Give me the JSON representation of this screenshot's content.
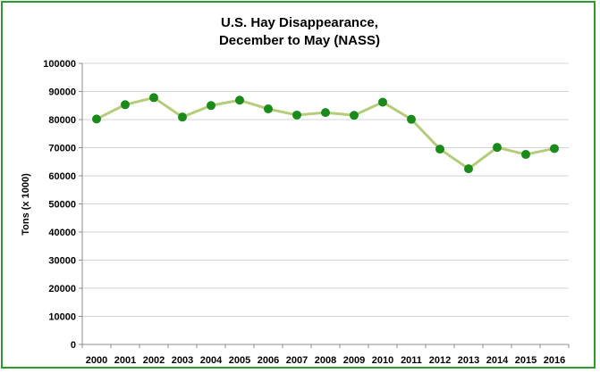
{
  "chart_data": {
    "type": "line",
    "title_lines": [
      "U.S. Hay Disappearance,",
      "December to May  (NASS)"
    ],
    "xlabel": "",
    "ylabel": "Tons (x 1000)",
    "ylim": [
      0,
      100000
    ],
    "yticks": [
      0,
      10000,
      20000,
      30000,
      40000,
      50000,
      60000,
      70000,
      80000,
      90000,
      100000
    ],
    "ytick_labels": [
      "0",
      "10000",
      "20000",
      "30000",
      "40000",
      "50000",
      "60000",
      "70000",
      "80000",
      "90000",
      "100000"
    ],
    "categories": [
      "2000",
      "2001",
      "2002",
      "2003",
      "2004",
      "2005",
      "2006",
      "2007",
      "2008",
      "2009",
      "2010",
      "2011",
      "2012",
      "2013",
      "2014",
      "2015",
      "2016"
    ],
    "series": [
      {
        "values": [
          80200,
          85300,
          87800,
          80900,
          85000,
          86900,
          83800,
          81600,
          82500,
          81500,
          86200,
          80100,
          69500,
          62500,
          70100,
          67600,
          69700
        ],
        "line_color": "#b5cc7a",
        "marker_color": "#1a8a1a"
      }
    ],
    "grid": true,
    "legend": "none"
  }
}
